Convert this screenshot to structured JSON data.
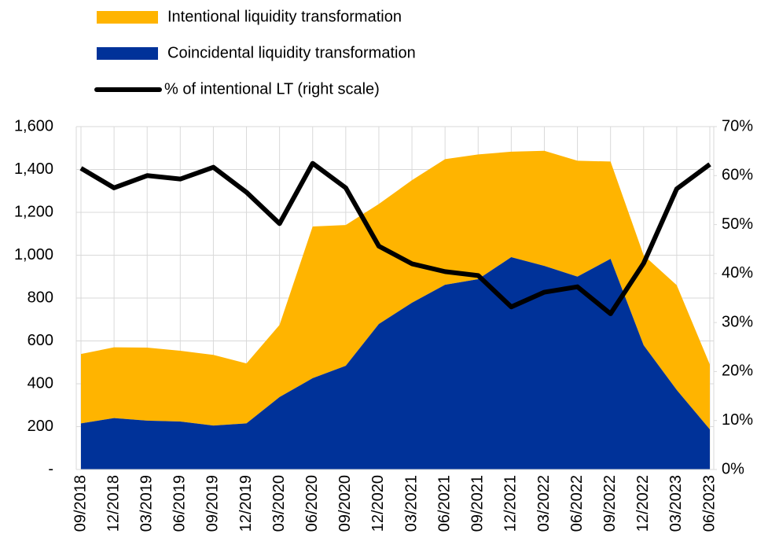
{
  "chart_data": {
    "type": "stacked_area_line",
    "categories": [
      "09/2018",
      "12/2018",
      "03/2019",
      "06/2019",
      "09/2019",
      "12/2019",
      "03/2020",
      "06/2020",
      "09/2020",
      "12/2020",
      "03/2021",
      "06/2021",
      "09/2021",
      "12/2021",
      "03/2022",
      "06/2022",
      "09/2022",
      "12/2022",
      "03/2023",
      "06/2023"
    ],
    "series": [
      {
        "name": "Intentional liquidity transformation",
        "color": "#ffb400",
        "type": "area",
        "values": [
          324,
          330,
          341,
          330,
          330,
          280,
          337,
          708,
          657,
          560,
          572,
          586,
          582,
          492,
          537,
          541,
          454,
          420,
          489,
          303
        ]
      },
      {
        "name": "Coincidental liquidity transformation",
        "color": "#003299",
        "type": "area",
        "values": [
          215,
          240,
          228,
          224,
          205,
          215,
          338,
          426,
          484,
          679,
          778,
          862,
          888,
          991,
          950,
          900,
          983,
          580,
          371,
          187
        ]
      },
      {
        "name": "% of intentional LT (right scale)",
        "color": "#000000",
        "type": "line",
        "axis": "y2",
        "values": [
          61.5,
          57.5,
          60,
          59.3,
          61.7,
          56.6,
          50.2,
          62.5,
          57.5,
          45.6,
          42,
          40.4,
          39.6,
          33.2,
          36.2,
          37.3,
          31.8,
          42.1,
          57.3,
          62.3
        ]
      }
    ],
    "stack_order": [
      1,
      0
    ],
    "ylim": [
      0,
      1600
    ],
    "yticks": [
      {
        "value": 0,
        "label": "-"
      },
      200,
      400,
      600,
      800,
      {
        "value": 1000,
        "label": "1,000"
      },
      {
        "value": 1200,
        "label": "1,200"
      },
      {
        "value": 1400,
        "label": "1,400"
      },
      {
        "value": 1600,
        "label": "1,600"
      }
    ],
    "y2lim": [
      0,
      70
    ],
    "y2ticks": [
      {
        "value": 0,
        "label": "0%"
      },
      {
        "value": 10,
        "label": "10%"
      },
      {
        "value": 20,
        "label": "20%"
      },
      {
        "value": 30,
        "label": "30%"
      },
      {
        "value": 40,
        "label": "40%"
      },
      {
        "value": 50,
        "label": "50%"
      },
      {
        "value": 60,
        "label": "60%"
      },
      {
        "value": 70,
        "label": "70%"
      }
    ],
    "grid": true
  }
}
